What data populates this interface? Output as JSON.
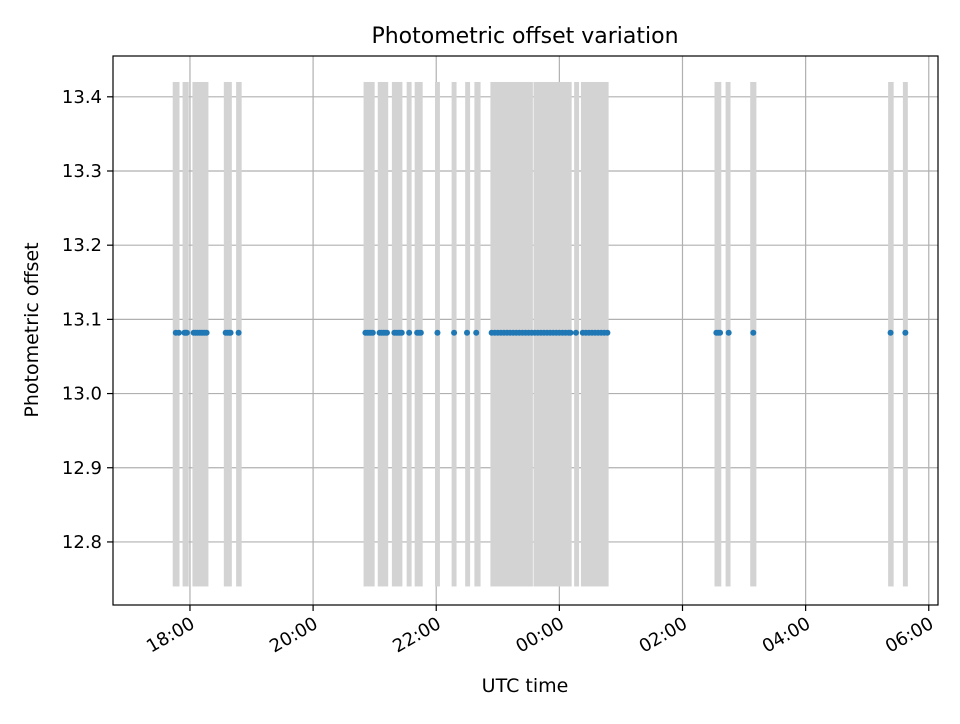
{
  "chart_data": {
    "type": "scatter",
    "title": "Photometric offset variation",
    "xlabel": "UTC time",
    "ylabel": "Photometric offset",
    "grid": true,
    "xlim_hours": [
      16.75,
      30.15
    ],
    "ylim": [
      12.715,
      13.455
    ],
    "x_ticks": [
      {
        "hour": 18,
        "label": "18:00"
      },
      {
        "hour": 20,
        "label": "20:00"
      },
      {
        "hour": 22,
        "label": "22:00"
      },
      {
        "hour": 24,
        "label": "00:00"
      },
      {
        "hour": 26,
        "label": "02:00"
      },
      {
        "hour": 28,
        "label": "04:00"
      },
      {
        "hour": 30,
        "label": "06:00"
      }
    ],
    "y_ticks": [
      {
        "value": 12.8,
        "label": "12.8"
      },
      {
        "value": 12.9,
        "label": "12.9"
      },
      {
        "value": 13.0,
        "label": "13.0"
      },
      {
        "value": 13.1,
        "label": "13.1"
      },
      {
        "value": 13.2,
        "label": "13.2"
      },
      {
        "value": 13.3,
        "label": "13.3"
      },
      {
        "value": 13.4,
        "label": "13.4"
      }
    ],
    "band_range": [
      12.74,
      13.42
    ],
    "bands_hours": [
      [
        17.72,
        17.83
      ],
      [
        17.88,
        17.98
      ],
      [
        18.04,
        18.3
      ],
      [
        18.55,
        18.68
      ],
      [
        18.75,
        18.84
      ],
      [
        20.82,
        21.0
      ],
      [
        21.05,
        21.22
      ],
      [
        21.28,
        21.45
      ],
      [
        21.52,
        21.6
      ],
      [
        21.65,
        21.78
      ],
      [
        21.98,
        22.06
      ],
      [
        22.25,
        22.33
      ],
      [
        22.47,
        22.55
      ],
      [
        22.62,
        22.72
      ],
      [
        22.88,
        23.57
      ],
      [
        23.58,
        24.2
      ],
      [
        24.24,
        24.32
      ],
      [
        24.35,
        24.8
      ],
      [
        26.52,
        26.63
      ],
      [
        26.7,
        26.78
      ],
      [
        27.1,
        27.2
      ],
      [
        29.34,
        29.43
      ],
      [
        29.58,
        29.66
      ]
    ],
    "series": [
      {
        "color": "#1f77b4",
        "x_hours": [
          17.77,
          17.82,
          17.91,
          17.93,
          17.95,
          18.06,
          18.09,
          18.12,
          18.15,
          18.18,
          18.21,
          18.24,
          18.27,
          18.58,
          18.61,
          18.64,
          18.66,
          18.79,
          20.85,
          20.88,
          20.91,
          20.94,
          20.97,
          21.08,
          21.11,
          21.14,
          21.17,
          21.2,
          21.32,
          21.35,
          21.38,
          21.41,
          21.44,
          21.56,
          21.69,
          21.72,
          21.75,
          22.02,
          22.29,
          22.5,
          22.65,
          22.9,
          22.95,
          23.0,
          23.05,
          23.1,
          23.15,
          23.2,
          23.25,
          23.3,
          23.35,
          23.4,
          23.45,
          23.5,
          23.55,
          23.6,
          23.65,
          23.7,
          23.75,
          23.8,
          23.85,
          23.9,
          23.95,
          24.0,
          24.05,
          24.1,
          24.15,
          24.18,
          24.27,
          24.38,
          24.43,
          24.48,
          24.53,
          24.58,
          24.63,
          24.68,
          24.73,
          24.78,
          26.55,
          26.58,
          26.61,
          26.75,
          27.15,
          29.38,
          29.62
        ],
        "y": 13.082
      }
    ]
  }
}
